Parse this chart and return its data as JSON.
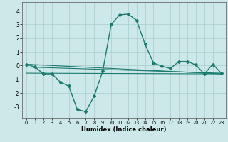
{
  "xlabel": "Humidex (Indice chaleur)",
  "background_color": "#cce8e8",
  "grid_color": "#aacccc",
  "line_color": "#1a7a6e",
  "xlim": [
    -0.5,
    23.5
  ],
  "ylim": [
    -3.8,
    4.6
  ],
  "xticks": [
    0,
    1,
    2,
    3,
    4,
    5,
    6,
    7,
    8,
    9,
    10,
    11,
    12,
    13,
    14,
    15,
    16,
    17,
    18,
    19,
    20,
    21,
    22,
    23
  ],
  "yticks": [
    -3,
    -2,
    -1,
    0,
    1,
    2,
    3,
    4
  ],
  "curve1_x": [
    0,
    1,
    2,
    3,
    4,
    5,
    6,
    7,
    8,
    9,
    10,
    11,
    12,
    13,
    14,
    15,
    16,
    17,
    18,
    19,
    20,
    21,
    22,
    23
  ],
  "curve1_y": [
    0.1,
    -0.1,
    -0.6,
    -0.6,
    -1.2,
    -1.5,
    -3.2,
    -3.35,
    -2.2,
    -0.4,
    3.0,
    3.7,
    3.75,
    3.3,
    1.55,
    0.2,
    -0.05,
    -0.2,
    0.3,
    0.3,
    0.05,
    -0.6,
    0.1,
    -0.55
  ],
  "curve2_x": [
    0,
    23
  ],
  "curve2_y": [
    -0.55,
    -0.6
  ],
  "curve3_x": [
    0,
    23
  ],
  "curve3_y": [
    0.1,
    -0.6
  ],
  "curve4_x": [
    0,
    23
  ],
  "curve4_y": [
    -0.1,
    -0.55
  ],
  "figsize": [
    3.2,
    2.0
  ],
  "dpi": 100
}
